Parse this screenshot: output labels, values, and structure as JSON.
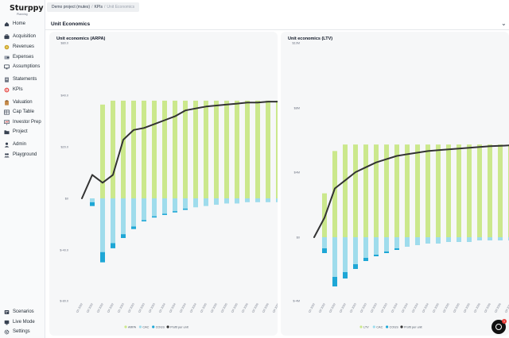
{
  "app": {
    "logo_text": "Sturppy",
    "logo_sub": "Planning"
  },
  "colors": {
    "ltv_arpa": "#cbe88c",
    "cac": "#9fdcec",
    "cogs": "#1ea7d6",
    "profit": "#333333",
    "panel": "#f6f7f8"
  },
  "sidebar": {
    "items": [
      {
        "label": "Home",
        "icon": "home-icon"
      },
      {
        "label": "Acquisition",
        "icon": "briefcase-icon"
      },
      {
        "label": "Revenues",
        "icon": "coins-icon"
      },
      {
        "label": "Expenses",
        "icon": "wallet-icon"
      },
      {
        "label": "Assumptions",
        "icon": "monitor-icon"
      },
      {
        "label": "Statements",
        "icon": "document-icon"
      },
      {
        "label": "KPIs",
        "icon": "target-icon"
      },
      {
        "label": "Valuation",
        "icon": "clipboard-icon"
      },
      {
        "label": "Cap Table",
        "icon": "table-icon"
      },
      {
        "label": "Investor Prep",
        "icon": "presentation-icon"
      },
      {
        "label": "Project",
        "icon": "folder-icon"
      },
      {
        "label": "Admin",
        "icon": "user-icon"
      },
      {
        "label": "Playground",
        "icon": "people-icon"
      }
    ],
    "bottom": [
      {
        "label": "Scenarios",
        "icon": "scenarios-icon"
      },
      {
        "label": "Live Mode",
        "icon": "live-icon"
      },
      {
        "label": "Settings",
        "icon": "gear-icon"
      }
    ]
  },
  "breadcrumb": {
    "project": "Demo project (mutes)",
    "kpis": "KPIs",
    "current": "Unit Economics"
  },
  "section": {
    "title": "Unit Economics"
  },
  "chat": {
    "badge": "1"
  },
  "chart_data": [
    {
      "type": "bar",
      "title": "Unit economics (ARPA)",
      "y_ticks": [
        "$80.0",
        "$40.0",
        "$20.0",
        "$0",
        "$-40.0",
        "$-80.0"
      ],
      "y_tick_values": [
        80,
        40,
        20,
        0,
        -40,
        -80
      ],
      "ylim": [
        -80,
        80
      ],
      "categories": [
        "Q1 2022",
        "Q2 2022",
        "Q3 2022",
        "Q4 2022",
        "Q1 2023",
        "Q2 2023",
        "Q3 2023",
        "Q4 2023",
        "Q1 2024",
        "Q2 2024",
        "Q3 2024",
        "Q4 2024",
        "Q1 2025",
        "Q2 2025",
        "Q3 2025",
        "Q4 2025",
        "Q1 2026",
        "Q2 2026",
        "Q3 2026",
        "Q4 2026"
      ],
      "series": [
        {
          "name": "ARPA",
          "values": [
            0,
            0,
            48,
            50,
            50,
            50,
            50,
            50,
            50,
            50,
            50,
            50,
            50,
            50,
            50,
            50,
            50,
            50,
            50,
            50
          ]
        },
        {
          "name": "CAC",
          "values": [
            0,
            -3,
            -42,
            -35,
            -28,
            -22,
            -17,
            -14,
            -12,
            -10,
            -8,
            -7,
            -6,
            -5,
            -4,
            -4,
            -3,
            -3,
            -3,
            -3
          ]
        },
        {
          "name": "COGS",
          "values": [
            0,
            -3,
            -8,
            -4,
            -3,
            -2,
            -1,
            -1,
            -1,
            -1,
            -1,
            0,
            0,
            0,
            0,
            0,
            0,
            0,
            0,
            0
          ]
        },
        {
          "name": "Profit per unit",
          "values": [
            0,
            12,
            8,
            12,
            30,
            35,
            36,
            38,
            40,
            42,
            45,
            46,
            47,
            47.5,
            48,
            48.5,
            49,
            49,
            49.5,
            49.5
          ]
        }
      ],
      "legend": "bottom-center"
    },
    {
      "type": "bar",
      "title": "Unit economics (LTV)",
      "y_ticks": [
        "$10M",
        "$8M",
        "$4M",
        "$0",
        "$-4M"
      ],
      "y_tick_values": [
        10,
        8,
        4,
        0,
        -4
      ],
      "ylim": [
        -4,
        12
      ],
      "categories": [
        "Q1 2022",
        "Q2 2022",
        "Q3 2022",
        "Q4 2022",
        "Q1 2023",
        "Q2 2023",
        "Q3 2023",
        "Q4 2023",
        "Q1 2024",
        "Q2 2024",
        "Q3 2024",
        "Q4 2024",
        "Q1 2025",
        "Q2 2025",
        "Q3 2025",
        "Q4 2025",
        "Q1 2026",
        "Q2 2026",
        "Q3 2026",
        "Q4 2026"
      ],
      "series": [
        {
          "name": "LTV",
          "values": [
            0,
            2.7,
            5.3,
            5.7,
            5.7,
            5.7,
            5.7,
            5.7,
            5.7,
            5.7,
            5.7,
            5.7,
            5.7,
            5.7,
            5.7,
            5.7,
            5.7,
            5.7,
            5.7,
            5.7
          ]
        },
        {
          "name": "CAC",
          "values": [
            0,
            -0.7,
            -2.5,
            -2.2,
            -1.7,
            -1.3,
            -1.1,
            -0.9,
            -0.7,
            -0.6,
            -0.5,
            -0.4,
            -0.4,
            -0.3,
            -0.3,
            -0.3,
            -0.2,
            -0.2,
            -0.2,
            -0.2
          ]
        },
        {
          "name": "COGS",
          "values": [
            0,
            -0.3,
            -0.6,
            -0.4,
            -0.3,
            -0.2,
            -0.1,
            -0.1,
            -0.1,
            0,
            0,
            0,
            0,
            0,
            0,
            0,
            0,
            0,
            0,
            0
          ]
        },
        {
          "name": "Profit per unit",
          "values": [
            0,
            1.2,
            3.0,
            3.5,
            4.0,
            4.3,
            4.6,
            4.8,
            5.0,
            5.1,
            5.2,
            5.3,
            5.35,
            5.4,
            5.45,
            5.5,
            5.55,
            5.6,
            5.62,
            5.65
          ]
        }
      ],
      "legend": "bottom-center"
    }
  ]
}
